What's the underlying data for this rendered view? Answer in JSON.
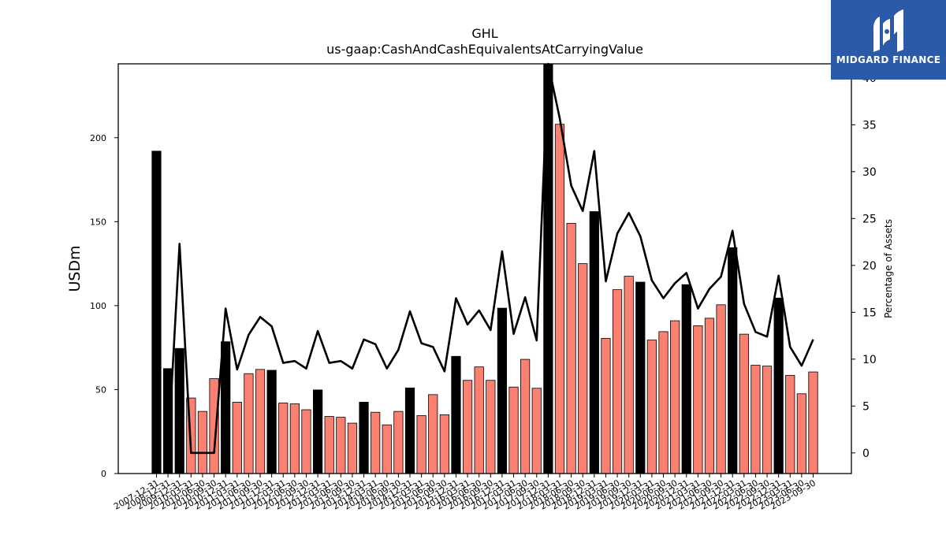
{
  "chart_data": {
    "type": "bar",
    "title": "GHL",
    "subtitle": "us-gaap:CashAndCashEquivalentsAtCarryingValue",
    "ylabel": "USDm",
    "y2label": "Percentage of Assets",
    "ylim": [
      0,
      244
    ],
    "y2lim": [
      -2.2,
      41.5
    ],
    "yticks": [
      "0",
      "50",
      "100",
      "150",
      "200"
    ],
    "y2ticks": [
      "0",
      "5",
      "10",
      "15",
      "20",
      "25",
      "30",
      "35",
      "40"
    ],
    "categories": [
      "2007-12-31",
      "2008-12-31",
      "2009-12-31",
      "2010-03-31",
      "2010-06-30",
      "2010-09-30",
      "2010-12-31",
      "2011-03-31",
      "2011-06-30",
      "2011-09-30",
      "2011-12-31",
      "2012-03-31",
      "2012-06-30",
      "2012-09-30",
      "2012-12-31",
      "2013-03-31",
      "2013-06-30",
      "2013-09-30",
      "2013-12-31",
      "2014-03-31",
      "2014-06-30",
      "2014-09-30",
      "2014-12-31",
      "2015-03-31",
      "2015-06-30",
      "2015-09-30",
      "2015-12-31",
      "2016-03-31",
      "2016-06-30",
      "2016-09-30",
      "2016-12-31",
      "2017-03-31",
      "2017-06-30",
      "2017-09-30",
      "2017-12-31",
      "2018-03-31",
      "2018-06-30",
      "2018-09-30",
      "2018-12-31",
      "2019-03-31",
      "2019-06-30",
      "2019-09-30",
      "2019-12-31",
      "2020-03-31",
      "2020-06-30",
      "2020-09-30",
      "2020-12-31",
      "2021-03-31",
      "2021-06-30",
      "2021-09-30",
      "2021-12-31",
      "2022-03-31",
      "2022-06-30",
      "2022-09-30",
      "2022-12-31",
      "2023-03-31",
      "2023-06-30",
      "2023-09-30"
    ],
    "tick_labels": [
      "2007-12-31",
      "2008-12-31",
      "2009-12-31",
      "2010-03-31",
      "2010-06-30",
      "2010-09-30",
      "2010-12-31",
      "2011-03-31",
      "2011-06-30",
      "2011-09-30",
      "2011-12-31",
      "2012-03-31",
      "2012-06-30",
      "2012-09-30",
      "2012-12-31",
      "2013-03-31",
      "2013-06-30",
      "2013-09-30",
      "2013-12-31",
      "2014-03-31",
      "2014-06-30",
      "2014-09-30",
      "2014-12-31",
      "2015-03-31",
      "2015-06-30",
      "2015-09-30",
      "2015-12-31",
      "2016-03-31",
      "2016-06-30",
      "2016-09-30",
      "2016-12-31",
      "2017-03-31",
      "2017-06-30",
      "2017-09-30",
      "2017-12-31",
      "2018-03-31",
      "2018-06-30",
      "2018-09-30",
      "2018-12-31",
      "2019-03-31",
      "2019-06-30",
      "2019-09-30",
      "2019-12-31",
      "2020-03-31",
      "2020-06-30",
      "2020-09-30",
      "2020-12-31",
      "2021-03-31",
      "2021-06-30",
      "2021-09-30",
      "2021-12-31",
      "2022-03-31",
      "2022-06-30",
      "2022-09-30",
      "2022-12-31",
      "2023-03-31",
      "2023-06-30",
      "2023-09-30"
    ],
    "series": [
      {
        "name": "",
        "axis": "left",
        "kind": "bar",
        "values": [
          192,
          62.5,
          74.5,
          45,
          37,
          56.5,
          78.5,
          42.5,
          59.5,
          62,
          61.5,
          42,
          41.5,
          38,
          49.8,
          34,
          33.5,
          30,
          42.5,
          36.5,
          29,
          37,
          51,
          34.5,
          47,
          35,
          69.8,
          55.5,
          63.5,
          55.5,
          98.5,
          51.5,
          68,
          50.8,
          245,
          208,
          149,
          125,
          156,
          80.5,
          109.5,
          117.5,
          114,
          79.5,
          84.5,
          91,
          112.5,
          88,
          92.5,
          100.5,
          134.5,
          83,
          64.5,
          64,
          104.5,
          58.5,
          47.5,
          60.5
        ],
        "highlight": [
          true,
          true,
          true,
          false,
          false,
          false,
          true,
          false,
          false,
          false,
          true,
          false,
          false,
          false,
          true,
          false,
          false,
          false,
          true,
          false,
          false,
          false,
          true,
          false,
          false,
          false,
          true,
          false,
          false,
          false,
          true,
          false,
          false,
          false,
          true,
          false,
          false,
          false,
          true,
          false,
          false,
          false,
          true,
          false,
          false,
          false,
          true,
          false,
          false,
          false,
          true,
          false,
          false,
          false,
          true,
          false,
          false,
          false
        ]
      },
      {
        "name": "",
        "axis": "right",
        "kind": "line",
        "values": [
          null,
          0,
          22.3,
          0,
          0,
          0,
          15.4,
          8.9,
          12.6,
          14.5,
          13.5,
          9.6,
          9.8,
          9,
          13,
          9.6,
          9.8,
          9,
          12.1,
          11.6,
          9,
          11,
          15.1,
          11.7,
          11.3,
          8.7,
          16.5,
          13.7,
          15.2,
          13.1,
          21.5,
          12.7,
          16.6,
          12,
          41.5,
          35.7,
          28.5,
          25.8,
          32.2,
          18.3,
          23.4,
          25.6,
          23.1,
          18.4,
          16.5,
          18.1,
          19.2,
          15.4,
          17.5,
          18.8,
          23.7,
          15.9,
          12.9,
          12.4,
          18.9,
          11.3,
          9.3,
          12.1
        ]
      }
    ],
    "colors": {
      "bar_normal": "#fa8072",
      "bar_highlight": "#000000",
      "line": "#000000"
    },
    "grid": false,
    "legend": "none"
  },
  "logo": {
    "text": "MIDGARD FINANCE",
    "icon": "midgard-finance-logo-icon",
    "background": "#2b5aa8"
  }
}
